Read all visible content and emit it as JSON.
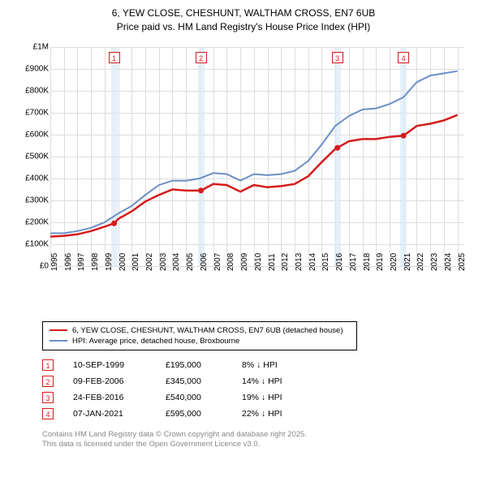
{
  "title_line1": "6, YEW CLOSE, CHESHUNT, WALTHAM CROSS, EN7 6UB",
  "title_line2": "Price paid vs. HM Land Registry's House Price Index (HPI)",
  "chart": {
    "type": "line",
    "background_color": "#ffffff",
    "grid_color": "#dddddd",
    "xlim": [
      1995,
      2025.5
    ],
    "ylim": [
      0,
      1000000
    ],
    "ytick_step": 100000,
    "ylabels": [
      "£0",
      "£100K",
      "£200K",
      "£300K",
      "£400K",
      "£500K",
      "£600K",
      "£700K",
      "£800K",
      "£900K",
      "£1M"
    ],
    "xlabels": [
      "1995",
      "1996",
      "1997",
      "1998",
      "1999",
      "2000",
      "2001",
      "2002",
      "2003",
      "2004",
      "2005",
      "2006",
      "2007",
      "2008",
      "2009",
      "2010",
      "2011",
      "2012",
      "2013",
      "2014",
      "2015",
      "2016",
      "2017",
      "2018",
      "2019",
      "2020",
      "2021",
      "2022",
      "2023",
      "2024",
      "2025"
    ],
    "series": [
      {
        "name": "price_paid",
        "color": "#d41c1c",
        "line_width": 2.5,
        "x": [
          1995,
          1996,
          1997,
          1998,
          1999,
          1999.7,
          2000,
          2001,
          2002,
          2003,
          2004,
          2005,
          2006,
          2006.1,
          2007,
          2008,
          2009,
          2010,
          2011,
          2012,
          2013,
          2014,
          2015,
          2016,
          2016.15,
          2017,
          2018,
          2019,
          2020,
          2021,
          2021.02,
          2022,
          2023,
          2024,
          2025
        ],
        "y": [
          135000,
          138000,
          145000,
          160000,
          180000,
          195000,
          215000,
          250000,
          295000,
          325000,
          350000,
          345000,
          345000,
          345000,
          375000,
          370000,
          340000,
          370000,
          360000,
          365000,
          375000,
          410000,
          475000,
          535000,
          540000,
          570000,
          580000,
          580000,
          590000,
          595000,
          595000,
          640000,
          650000,
          665000,
          690000
        ]
      },
      {
        "name": "hpi",
        "color": "#6a8fc7",
        "line_width": 2,
        "x": [
          1995,
          1996,
          1997,
          1998,
          1999,
          2000,
          2001,
          2002,
          2003,
          2004,
          2005,
          2006,
          2007,
          2008,
          2009,
          2010,
          2011,
          2012,
          2013,
          2014,
          2015,
          2016,
          2017,
          2018,
          2019,
          2020,
          2021,
          2022,
          2023,
          2024,
          2025
        ],
        "y": [
          150000,
          150000,
          160000,
          175000,
          200000,
          240000,
          275000,
          325000,
          370000,
          390000,
          390000,
          400000,
          425000,
          420000,
          390000,
          420000,
          415000,
          420000,
          435000,
          480000,
          555000,
          640000,
          685000,
          715000,
          720000,
          740000,
          770000,
          840000,
          870000,
          880000,
          890000
        ]
      }
    ],
    "markers": [
      {
        "n": "1",
        "x": 1999.7,
        "y": 195000
      },
      {
        "n": "2",
        "x": 2006.1,
        "y": 345000
      },
      {
        "n": "3",
        "x": 2016.15,
        "y": 540000
      },
      {
        "n": "4",
        "x": 2021.02,
        "y": 595000
      }
    ],
    "marker_box_color": "#d41c1c",
    "marker_band_color": "#dbe9f6"
  },
  "legend": {
    "items": [
      {
        "label": "6, YEW CLOSE, CHESHUNT, WALTHAM CROSS, EN7 6UB (detached house)",
        "color": "#d41c1c"
      },
      {
        "label": "HPI: Average price, detached house, Broxbourne",
        "color": "#6a8fc7"
      }
    ]
  },
  "table": {
    "rows": [
      {
        "n": "1",
        "date": "10-SEP-1999",
        "price": "£195,000",
        "diff": "8% ↓ HPI"
      },
      {
        "n": "2",
        "date": "09-FEB-2006",
        "price": "£345,000",
        "diff": "14% ↓ HPI"
      },
      {
        "n": "3",
        "date": "24-FEB-2016",
        "price": "£540,000",
        "diff": "19% ↓ HPI"
      },
      {
        "n": "4",
        "date": "07-JAN-2021",
        "price": "£595,000",
        "diff": "22% ↓ HPI"
      }
    ]
  },
  "footnote_line1": "Contains HM Land Registry data © Crown copyright and database right 2025.",
  "footnote_line2": "This data is licensed under the Open Government Licence v3.0."
}
